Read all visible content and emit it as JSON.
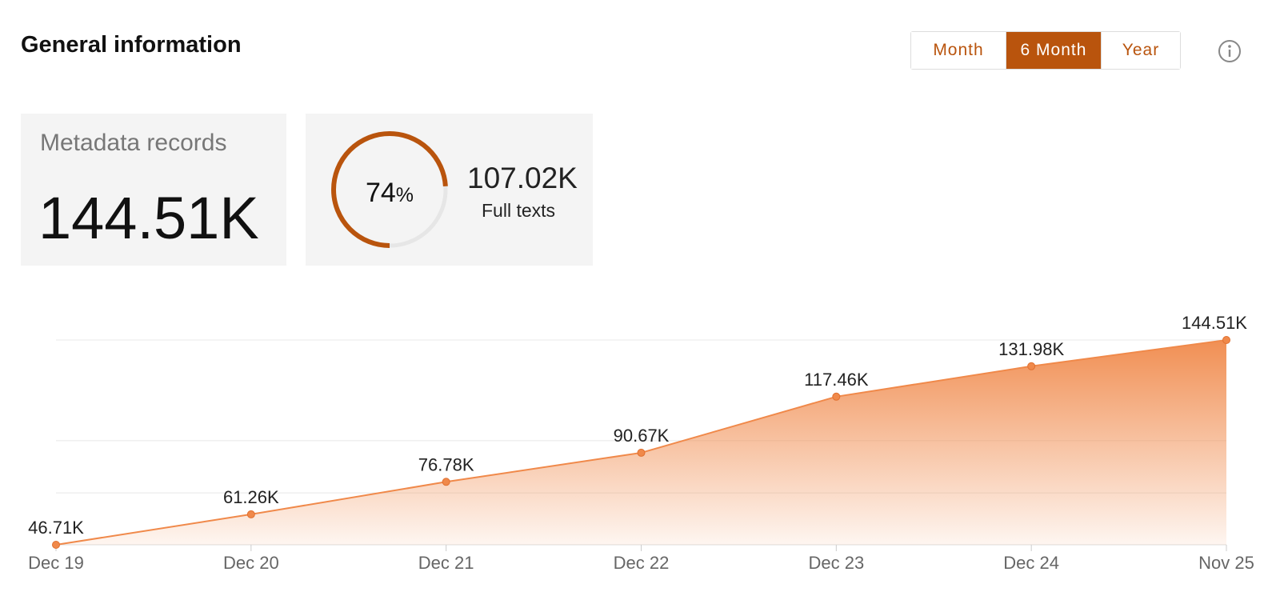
{
  "header": {
    "title": "General information",
    "buttons": [
      "Month",
      "6 Month",
      "Year"
    ],
    "active_button": 1
  },
  "cards": [
    {
      "label": "Metadata records",
      "value": "144.51K"
    },
    {
      "donut": {
        "value": 74,
        "unit": "%"
      },
      "value": "107.02K",
      "label": "Full texts"
    }
  ],
  "chart_data": {
    "type": "area",
    "categories": [
      "Dec 19",
      "Dec 20",
      "Dec 21",
      "Dec 22",
      "Dec 23",
      "Dec 24",
      "Nov 25"
    ],
    "values": [
      46710,
      61260,
      76780,
      90670,
      117460,
      131980,
      144510
    ],
    "value_labels": [
      "46.71K",
      "61.26K",
      "76.78K",
      "90.67K",
      "117.46K",
      "131.98K",
      "144.51K"
    ],
    "color": "#f0894a",
    "ylim": [
      46710,
      144510
    ],
    "yticks": [
      71500,
      96400,
      144510
    ],
    "grid": true
  }
}
